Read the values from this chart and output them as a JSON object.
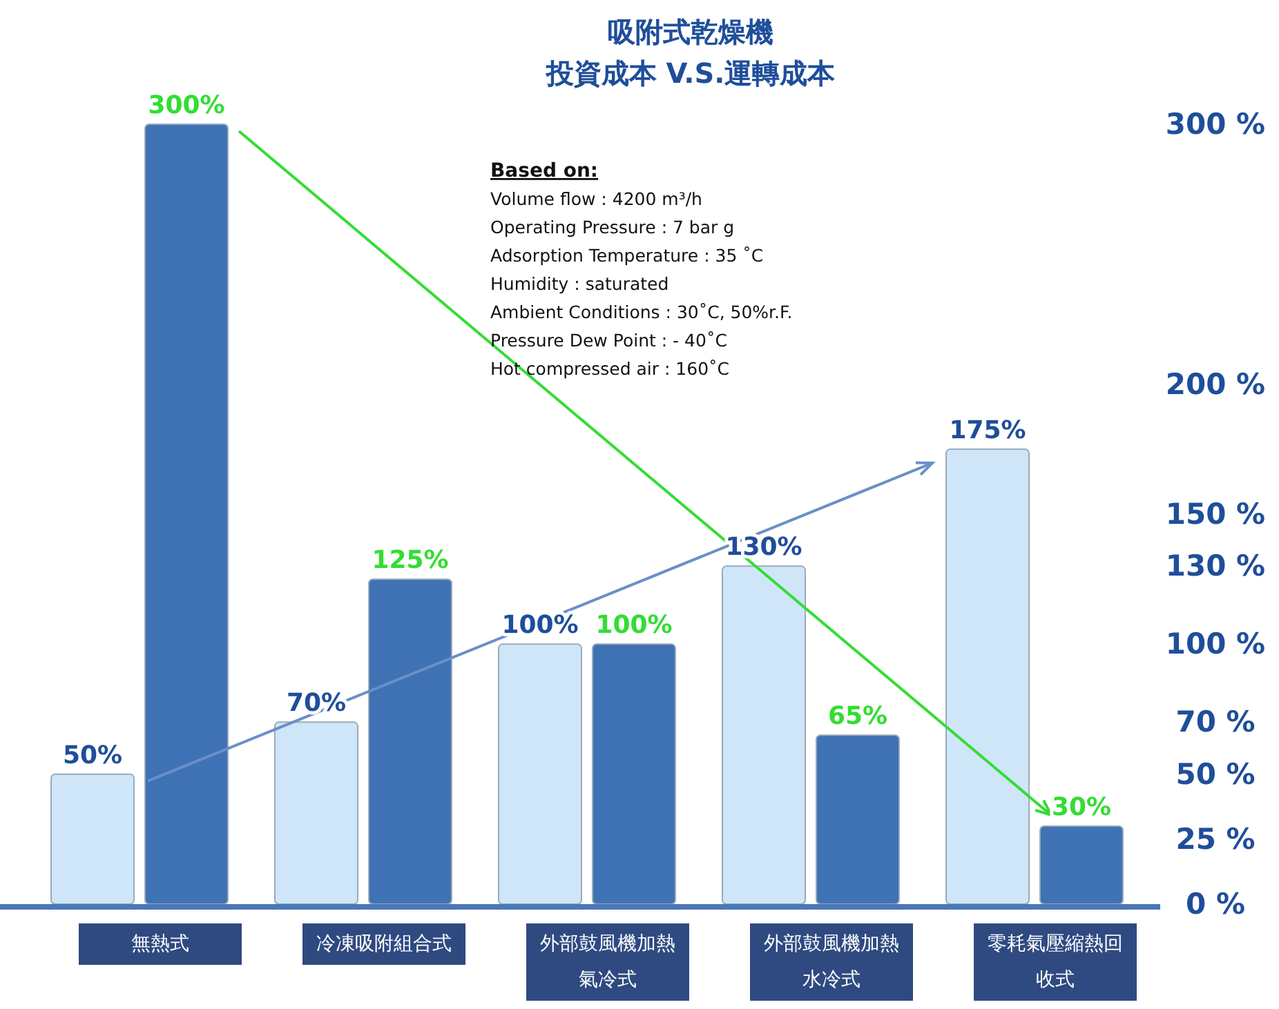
{
  "chart_data": {
    "type": "bar",
    "title": "吸附式乾燥機",
    "subtitle": "投資成本 V.S.運轉成本",
    "categories": [
      "無熱式",
      "冷凍吸附組合式",
      "外部鼓風機加熱氣冷式",
      "外部鼓風機加熱水冷式",
      "零耗氣壓縮熱回收式"
    ],
    "series": [
      {
        "color": "#cfe6f8",
        "values": [
          50,
          70,
          100,
          130,
          175
        ],
        "value_labels": [
          "50%",
          "70%",
          "100%",
          "130%",
          "175%"
        ]
      },
      {
        "color": "#3f72b5",
        "values": [
          300,
          125,
          100,
          65,
          30
        ],
        "value_labels": [
          "300%",
          "125%",
          "100%",
          "65%",
          "30%"
        ]
      }
    ],
    "ylim": [
      0,
      300
    ],
    "yticks": [
      {
        "value": 0,
        "label": "0 %"
      },
      {
        "value": 25,
        "label": "25 %"
      },
      {
        "value": 50,
        "label": "50 %"
      },
      {
        "value": 70,
        "label": "70 %"
      },
      {
        "value": 100,
        "label": "100 %"
      },
      {
        "value": 130,
        "label": "130 %"
      },
      {
        "value": 150,
        "label": "150 %"
      },
      {
        "value": 200,
        "label": "200 %"
      },
      {
        "value": 300,
        "label": "300 %"
      }
    ],
    "grid": false,
    "annotations": [
      "Based on:",
      "Volume flow : 4200 m³/h",
      "Operating Pressure : 7 bar g",
      "Adsorption Temperature : 35 ˚C",
      "Humidity : saturated",
      "Ambient Conditions : 30˚C, 50%r.F.",
      "Pressure Dew Point : - 40˚C",
      "Hot compressed air : 160˚C"
    ]
  }
}
